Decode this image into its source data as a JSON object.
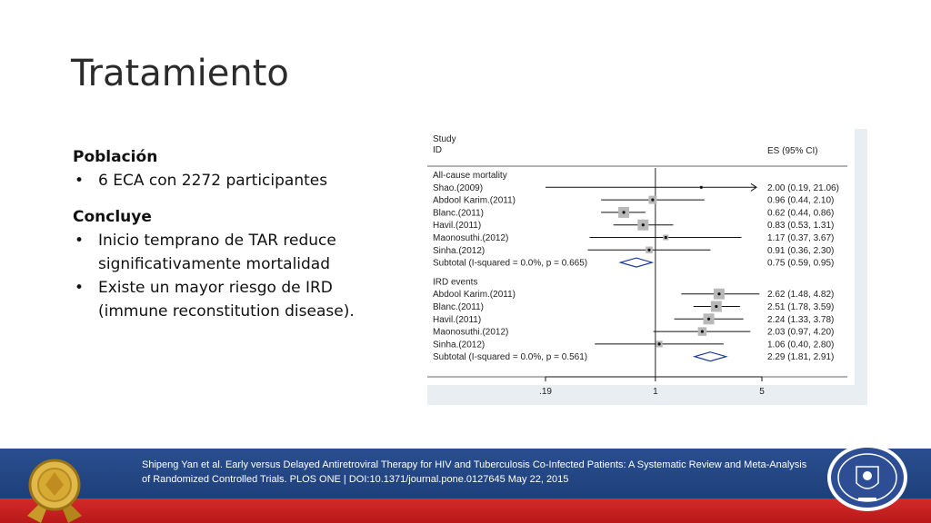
{
  "slide": {
    "title": "Tratamiento",
    "poblacion_heading": "Población",
    "poblacion_items": [
      "6 ECA con 2272 participantes"
    ],
    "concluye_heading": "Concluye",
    "concluye_items": [
      "Inicio temprano de TAR reduce significativamente mortalidad",
      "Existe un mayor riesgo de IRD (immune reconstitution disease)."
    ]
  },
  "footer": {
    "citation": "Shipeng Yan et al. Early versus Delayed Antiretroviral Therapy for HIV and Tuberculosis Co-Infected Patients: A Systematic Review and Meta-Analysis of Randomized Controlled Trials. PLOS ONE | DOI:10.1371/journal.pone.0127645 May 22, 2015",
    "colors": {
      "band": "#1e3f7a",
      "red": "#c41f1f"
    }
  },
  "chart_data": {
    "type": "forest",
    "header_left": [
      "Study",
      "ID"
    ],
    "header_right": "ES (95% CI)",
    "xscale": "log",
    "xlim": [
      0.19,
      5
    ],
    "xticks": [
      0.19,
      1,
      5
    ],
    "xtick_labels": [
      ".19",
      "1",
      "5"
    ],
    "groups": [
      {
        "name": "All-cause mortality",
        "studies": [
          {
            "label": "Shao.(2009)",
            "es": 2.0,
            "lo": 0.19,
            "hi": 21.06,
            "text": "2.00 (0.19, 21.06)",
            "arrow": true
          },
          {
            "label": "Abdool Karim.(2011)",
            "es": 0.96,
            "lo": 0.44,
            "hi": 2.1,
            "text": "0.96 (0.44, 2.10)"
          },
          {
            "label": "Blanc.(2011)",
            "es": 0.62,
            "lo": 0.44,
            "hi": 0.86,
            "text": "0.62 (0.44, 0.86)"
          },
          {
            "label": "Havil.(2011)",
            "es": 0.83,
            "lo": 0.53,
            "hi": 1.31,
            "text": "0.83 (0.53, 1.31)"
          },
          {
            "label": "Maonosuthi.(2012)",
            "es": 1.17,
            "lo": 0.37,
            "hi": 3.67,
            "text": "1.17 (0.37, 3.67)"
          },
          {
            "label": "Sinha.(2012)",
            "es": 0.91,
            "lo": 0.36,
            "hi": 2.3,
            "text": "0.91 (0.36, 2.30)"
          }
        ],
        "subtotal": {
          "label": "Subtotal  (I-squared = 0.0%, p = 0.665)",
          "es": 0.75,
          "lo": 0.59,
          "hi": 0.95,
          "text": "0.75 (0.59, 0.95)"
        }
      },
      {
        "name": "IRD events",
        "studies": [
          {
            "label": "Abdool Karim.(2011)",
            "es": 2.62,
            "lo": 1.48,
            "hi": 4.82,
            "text": "2.62 (1.48, 4.82)"
          },
          {
            "label": "Blanc.(2011)",
            "es": 2.51,
            "lo": 1.78,
            "hi": 3.59,
            "text": "2.51 (1.78, 3.59)"
          },
          {
            "label": "Havil.(2011)",
            "es": 2.24,
            "lo": 1.33,
            "hi": 3.78,
            "text": "2.24 (1.33, 3.78)"
          },
          {
            "label": "Maonosuthi.(2012)",
            "es": 2.03,
            "lo": 0.97,
            "hi": 4.2,
            "text": "2.03 (0.97, 4.20)"
          },
          {
            "label": "Sinha.(2012)",
            "es": 1.06,
            "lo": 0.4,
            "hi": 2.8,
            "text": "1.06 (0.40, 2.80)"
          }
        ],
        "subtotal": {
          "label": "Subtotal  (I-squared = 0.0%, p = 0.561)",
          "es": 2.29,
          "lo": 1.81,
          "hi": 2.91,
          "text": "2.29 (1.81, 2.91)"
        }
      }
    ]
  }
}
